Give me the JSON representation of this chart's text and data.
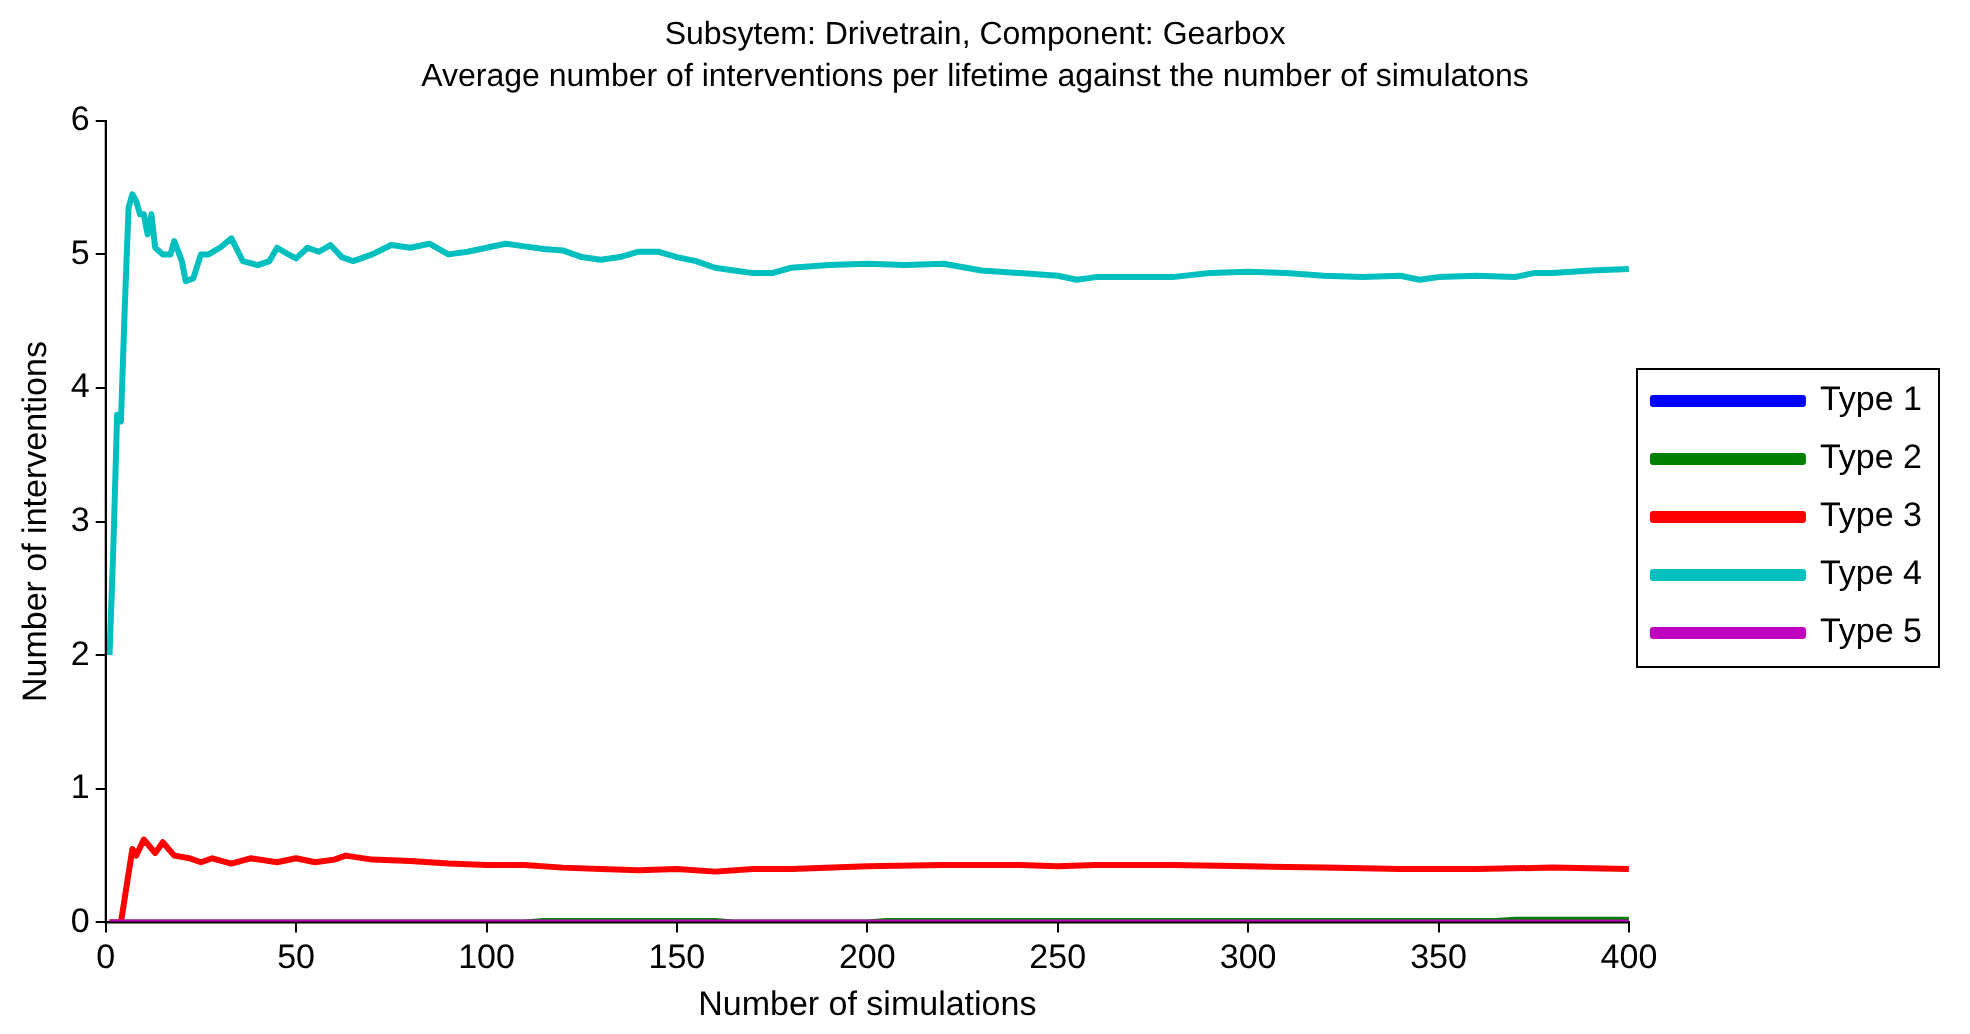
{
  "chart_data": {
    "type": "line",
    "title": "Subsytem: Drivetrain, Component: Gearbox",
    "subtitle": "Average number of interventions per lifetime against the number of simulatons",
    "xlabel": "Number of simulations",
    "ylabel": "Number of interventions",
    "xlim": [
      0,
      400
    ],
    "xticks": [
      0,
      50,
      100,
      150,
      200,
      250,
      300,
      350,
      400
    ],
    "ylim": [
      0,
      6
    ],
    "yticks": [
      0,
      1,
      2,
      3,
      4,
      5,
      6
    ],
    "grid": false,
    "legend": "right",
    "marker": "none",
    "line_style": "solid",
    "series": [
      {
        "name": "Type 1",
        "color": "#0000ff"
      },
      {
        "name": "Type 2",
        "color": "#008000",
        "x": [
          1,
          110,
          115,
          160,
          165,
          200,
          205,
          365,
          370,
          400
        ],
        "values": [
          0,
          0,
          0.01,
          0.01,
          0,
          0,
          0.01,
          0.01,
          0.02,
          0.02
        ]
      },
      {
        "name": "Type 3",
        "color": "#ff0000",
        "x": [
          1,
          4,
          7,
          8,
          10,
          13,
          15,
          18,
          22,
          25,
          28,
          33,
          38,
          45,
          50,
          55,
          60,
          63,
          70,
          80,
          90,
          100,
          110,
          120,
          130,
          140,
          150,
          160,
          170,
          180,
          200,
          220,
          240,
          250,
          260,
          280,
          300,
          320,
          340,
          360,
          380,
          400
        ],
        "values": [
          0,
          0,
          0.55,
          0.5,
          0.62,
          0.52,
          0.6,
          0.5,
          0.48,
          0.45,
          0.48,
          0.44,
          0.48,
          0.45,
          0.48,
          0.45,
          0.47,
          0.5,
          0.47,
          0.46,
          0.44,
          0.43,
          0.43,
          0.41,
          0.4,
          0.39,
          0.4,
          0.38,
          0.4,
          0.4,
          0.42,
          0.43,
          0.43,
          0.42,
          0.43,
          0.43,
          0.42,
          0.41,
          0.4,
          0.4,
          0.41,
          0.4
        ]
      },
      {
        "name": "Type 4",
        "color": "#00bfbf",
        "x": [
          1,
          2,
          3,
          4,
          5,
          6,
          7,
          8,
          9,
          10,
          11,
          12,
          13,
          15,
          17,
          18,
          20,
          21,
          23,
          25,
          27,
          30,
          33,
          36,
          40,
          43,
          45,
          48,
          50,
          53,
          56,
          59,
          62,
          65,
          70,
          75,
          80,
          85,
          90,
          95,
          100,
          105,
          110,
          115,
          120,
          125,
          130,
          135,
          140,
          145,
          150,
          155,
          160,
          165,
          170,
          175,
          180,
          190,
          200,
          210,
          220,
          230,
          240,
          250,
          255,
          260,
          270,
          280,
          290,
          300,
          310,
          320,
          330,
          340,
          345,
          350,
          360,
          370,
          375,
          380,
          390,
          400
        ],
        "values": [
          2.0,
          2.8,
          3.8,
          3.75,
          4.6,
          5.35,
          5.45,
          5.4,
          5.3,
          5.3,
          5.15,
          5.3,
          5.05,
          5.0,
          5.0,
          5.1,
          4.95,
          4.8,
          4.82,
          5.0,
          5.0,
          5.05,
          5.12,
          4.95,
          4.92,
          4.95,
          5.05,
          5.0,
          4.97,
          5.05,
          5.02,
          5.07,
          4.98,
          4.95,
          5.0,
          5.07,
          5.05,
          5.08,
          5.0,
          5.02,
          5.05,
          5.08,
          5.06,
          5.04,
          5.03,
          4.98,
          4.96,
          4.98,
          5.02,
          5.02,
          4.98,
          4.95,
          4.9,
          4.88,
          4.86,
          4.86,
          4.9,
          4.92,
          4.93,
          4.92,
          4.93,
          4.88,
          4.86,
          4.84,
          4.81,
          4.83,
          4.83,
          4.83,
          4.86,
          4.87,
          4.86,
          4.84,
          4.83,
          4.84,
          4.81,
          4.83,
          4.84,
          4.83,
          4.86,
          4.86,
          4.88,
          4.89
        ]
      },
      {
        "name": "Type 5",
        "color": "#bf00bf",
        "x": [
          1,
          400
        ],
        "values": [
          0,
          0
        ]
      }
    ]
  }
}
